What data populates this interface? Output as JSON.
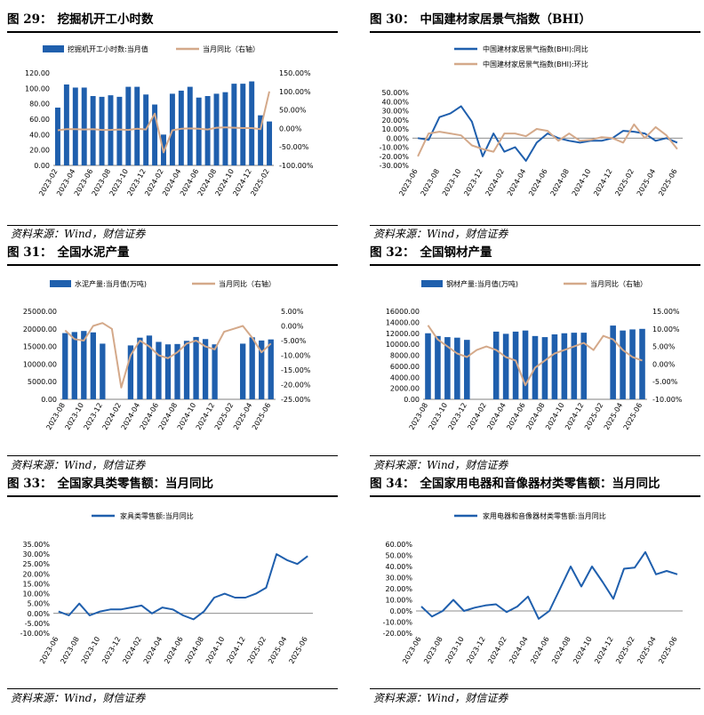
{
  "source_label": "资料来源：Wind，财信证券",
  "colors": {
    "bar": "#1f5fad",
    "line1": "#d4a98a",
    "line_blue": "#1f5fad",
    "line_tan": "#d4a98a",
    "text": "#000000"
  },
  "panels": [
    {
      "fig": "图 29：",
      "title": "挖掘机开工小时数",
      "chart_data": {
        "type": "bar+line",
        "legend": [
          "挖掘机开工小时数:当月值",
          "当月同比（右轴）"
        ],
        "categories": [
          "2023-02",
          "2023-03",
          "2023-04",
          "2023-05",
          "2023-06",
          "2023-07",
          "2023-08",
          "2023-09",
          "2023-10",
          "2023-11",
          "2023-12",
          "2024-01",
          "2024-02",
          "2024-03",
          "2024-04",
          "2024-05",
          "2024-06",
          "2024-07",
          "2024-08",
          "2024-09",
          "2024-10",
          "2024-11",
          "2024-12",
          "2025-01",
          "2025-02"
        ],
        "xticks": [
          "2023-02",
          "2023-04",
          "2023-06",
          "2023-08",
          "2023-10",
          "2023-12",
          "2024-02",
          "2024-04",
          "2024-06",
          "2024-08",
          "2024-10",
          "2024-12",
          "2025-02"
        ],
        "bars": [
          75,
          105,
          101,
          101,
          90,
          89,
          91,
          89,
          102,
          102,
          92,
          79,
          40,
          93,
          97,
          102,
          88,
          90,
          93,
          95,
          106,
          106,
          109,
          65,
          57
        ],
        "line": [
          -5,
          -2,
          -2,
          -3,
          -2,
          -4,
          -4,
          -3,
          -4,
          -1,
          -3,
          40,
          -65,
          -5,
          -1,
          0,
          -1,
          -3,
          2,
          3,
          2,
          1,
          1,
          -2,
          100
        ],
        "yleft": {
          "min": 0,
          "max": 120,
          "step": 20,
          "labels": [
            "0.00",
            "20.00",
            "40.00",
            "60.00",
            "80.00",
            "100.00",
            "120.00"
          ]
        },
        "yright": {
          "min": -100,
          "max": 150,
          "step": 50,
          "labels": [
            "-100.00%",
            "-50.00%",
            "0.00%",
            "50.00%",
            "100.00%",
            "150.00%"
          ]
        }
      }
    },
    {
      "fig": "图 30：",
      "title": "中国建材家居景气指数（BHI）",
      "chart_data": {
        "type": "line",
        "legend": [
          "中国建材家居景气指数(BHI):同比",
          "中国建材家居景气指数(BHI):环比"
        ],
        "categories": [
          "2023-06",
          "2023-07",
          "2023-08",
          "2023-09",
          "2023-10",
          "2023-11",
          "2023-12",
          "2024-01",
          "2024-02",
          "2024-03",
          "2024-04",
          "2024-05",
          "2024-06",
          "2024-07",
          "2024-08",
          "2024-09",
          "2024-10",
          "2024-11",
          "2024-12",
          "2025-01",
          "2025-02",
          "2025-03",
          "2025-04",
          "2025-05",
          "2025-06"
        ],
        "xticks": [
          "2023-06",
          "2023-08",
          "2023-10",
          "2023-12",
          "2024-02",
          "2024-04",
          "2024-06",
          "2024-08",
          "2024-10",
          "2024-12",
          "2025-02",
          "2025-04",
          "2025-06"
        ],
        "series": [
          {
            "name": "中国建材家居景气指数(BHI):同比",
            "values": [
              0,
              -2,
              23,
              27,
              35,
              18,
              -20,
              5,
              -15,
              -10,
              -25,
              -5,
              5,
              0,
              -3,
              -5,
              -3,
              -3,
              0,
              8,
              7,
              5,
              -3,
              0,
              -5
            ]
          },
          {
            "name": "中国建材家居景气指数(BHI):环比",
            "values": [
              -20,
              5,
              7,
              5,
              3,
              -8,
              -12,
              -15,
              5,
              5,
              2,
              10,
              8,
              -3,
              5,
              -3,
              -2,
              1,
              0,
              -5,
              15,
              0,
              12,
              3,
              -12
            ]
          }
        ],
        "y": {
          "min": -30,
          "max": 50,
          "step": 10,
          "labels": [
            "-30.00%",
            "-20.00%",
            "-10.00%",
            "0.00%",
            "10.00%",
            "20.00%",
            "30.00%",
            "40.00%",
            "50.00%"
          ]
        }
      }
    },
    {
      "fig": "图 31：",
      "title": "全国水泥产量",
      "chart_data": {
        "type": "bar+line",
        "legend": [
          "水泥产量:当月值(万吨)",
          "当月同比（右轴）"
        ],
        "categories": [
          "2023-08",
          "2023-09",
          "2023-10",
          "2023-11",
          "2023-12",
          "2024-01",
          "2024-02",
          "2024-03",
          "2024-04",
          "2024-05",
          "2024-06",
          "2024-07",
          "2024-08",
          "2024-09",
          "2024-10",
          "2024-11",
          "2024-12",
          "2025-01",
          "2025-02",
          "2025-03",
          "2025-04",
          "2025-05",
          "2025-06"
        ],
        "xticks": [
          "2023-08",
          "2023-10",
          "2023-12",
          "2024-02",
          "2024-04",
          "2024-06",
          "2024-08",
          "2024-10",
          "2024-12",
          "2025-02",
          "2025-04",
          "2025-06"
        ],
        "bars": [
          18800,
          19100,
          19400,
          19000,
          15800,
          null,
          null,
          15300,
          17500,
          18100,
          16300,
          15600,
          15700,
          16600,
          17700,
          17100,
          15600,
          null,
          null,
          15800,
          17600,
          16700,
          17000
        ],
        "line": [
          -1.5,
          -4.5,
          -5,
          0,
          1,
          -1,
          -21,
          -10,
          -5,
          -7,
          -10,
          -11,
          -9,
          -6,
          -5,
          -7,
          -8,
          -2,
          -1,
          0,
          -4,
          -9,
          -6
        ],
        "yleft": {
          "min": 0,
          "max": 25000,
          "step": 5000,
          "labels": [
            "0.00",
            "5000.00",
            "10000.00",
            "15000.00",
            "20000.00",
            "25000.00"
          ]
        },
        "yright": {
          "min": -25,
          "max": 5,
          "step": 5,
          "labels": [
            "-25.00%",
            "-20.00%",
            "-15.00%",
            "-10.00%",
            "-5.00%",
            "0.00%",
            "5.00%"
          ]
        }
      }
    },
    {
      "fig": "图 32：",
      "title": "全国钢材产量",
      "chart_data": {
        "type": "bar+line",
        "legend": [
          "钢材产量:当月值(万吨)",
          "当月同比（右轴）"
        ],
        "categories": [
          "2023-08",
          "2023-09",
          "2023-10",
          "2023-11",
          "2023-12",
          "2024-01",
          "2024-02",
          "2024-03",
          "2024-04",
          "2024-05",
          "2024-06",
          "2024-07",
          "2024-08",
          "2024-09",
          "2024-10",
          "2024-11",
          "2024-12",
          "2025-01",
          "2025-02",
          "2025-03",
          "2025-04",
          "2025-05",
          "2025-06"
        ],
        "xticks": [
          "2023-08",
          "2023-10",
          "2023-12",
          "2024-02",
          "2024-04",
          "2024-06",
          "2024-08",
          "2024-10",
          "2024-12",
          "2025-02",
          "2025-04",
          "2025-06"
        ],
        "bars": [
          12000,
          11500,
          11300,
          11200,
          10800,
          null,
          null,
          12300,
          11900,
          12300,
          12500,
          11500,
          11300,
          11800,
          12000,
          12100,
          12100,
          null,
          null,
          13400,
          12500,
          12700,
          12800
        ],
        "line": [
          11,
          7,
          5,
          3,
          2,
          4,
          5,
          4,
          2,
          1,
          -6,
          -1,
          1,
          3,
          4,
          5,
          6,
          4,
          8,
          7,
          4,
          2,
          1
        ],
        "yleft": {
          "min": 0,
          "max": 16000,
          "step": 2000,
          "labels": [
            "0.00",
            "2000.00",
            "4000.00",
            "6000.00",
            "8000.00",
            "10000.00",
            "12000.00",
            "14000.00",
            "16000.00"
          ]
        },
        "yright": {
          "min": -10,
          "max": 15,
          "step": 5,
          "labels": [
            "-10.00%",
            "-5.00%",
            "0.00%",
            "5.00%",
            "10.00%",
            "15.00%"
          ]
        }
      }
    },
    {
      "fig": "图 33：",
      "title": "全国家具类零售额：当月同比",
      "chart_data": {
        "type": "line",
        "legend": [
          "家具类零售额:当月同比"
        ],
        "categories": [
          "2023-06",
          "2023-07",
          "2023-08",
          "2023-09",
          "2023-10",
          "2023-11",
          "2023-12",
          "2024-01",
          "2024-02",
          "2024-03",
          "2024-04",
          "2024-05",
          "2024-06",
          "2024-07",
          "2024-08",
          "2024-09",
          "2024-10",
          "2024-11",
          "2024-12",
          "2025-01",
          "2025-02",
          "2025-03",
          "2025-04",
          "2025-05",
          "2025-06"
        ],
        "xticks": [
          "2023-06",
          "2023-08",
          "2023-10",
          "2023-12",
          "2024-02",
          "2024-04",
          "2024-06",
          "2024-08",
          "2024-10",
          "2024-12",
          "2025-02",
          "2025-04",
          "2025-06"
        ],
        "series": [
          {
            "name": "家具类零售额:当月同比",
            "values": [
              1,
              -1,
              5,
              -1,
              1,
              2,
              2,
              3,
              4,
              0,
              3,
              2,
              -1,
              -3,
              1,
              8,
              10,
              8,
              8,
              10,
              13,
              30,
              27,
              25,
              29
            ]
          }
        ],
        "y": {
          "min": -10,
          "max": 35,
          "step": 5,
          "labels": [
            "-10.00%",
            "-5.00%",
            "0.00%",
            "5.00%",
            "10.00%",
            "15.00%",
            "20.00%",
            "25.00%",
            "30.00%",
            "35.00%"
          ]
        }
      }
    },
    {
      "fig": "图 34：",
      "title": "全国家用电器和音像器材类零售额：当月同比",
      "chart_data": {
        "type": "line",
        "legend": [
          "家用电器和音像器材类零售额:当月同比"
        ],
        "categories": [
          "2023-06",
          "2023-07",
          "2023-08",
          "2023-09",
          "2023-10",
          "2023-11",
          "2023-12",
          "2024-01",
          "2024-02",
          "2024-03",
          "2024-04",
          "2024-05",
          "2024-06",
          "2024-07",
          "2024-08",
          "2024-09",
          "2024-10",
          "2024-11",
          "2024-12",
          "2025-01",
          "2025-02",
          "2025-03",
          "2025-04",
          "2025-05",
          "2025-06"
        ],
        "xticks": [
          "2023-06",
          "2023-08",
          "2023-10",
          "2023-12",
          "2024-02",
          "2024-04",
          "2024-06",
          "2024-08",
          "2024-10",
          "2024-12",
          "2025-02",
          "2025-04",
          "2025-06"
        ],
        "series": [
          {
            "name": "家用电器和音像器材类零售额:当月同比",
            "values": [
              4,
              -5,
              0,
              10,
              0,
              3,
              5,
              6,
              -1,
              4,
              13,
              -7,
              0,
              20,
              40,
              22,
              40,
              26,
              11,
              38,
              39,
              53,
              33,
              36,
              33
            ]
          }
        ],
        "y": {
          "min": -20,
          "max": 60,
          "step": 10,
          "labels": [
            "-20.00%",
            "-10.00%",
            "0.00%",
            "10.00%",
            "20.00%",
            "30.00%",
            "40.00%",
            "50.00%",
            "60.00%"
          ]
        }
      }
    }
  ]
}
